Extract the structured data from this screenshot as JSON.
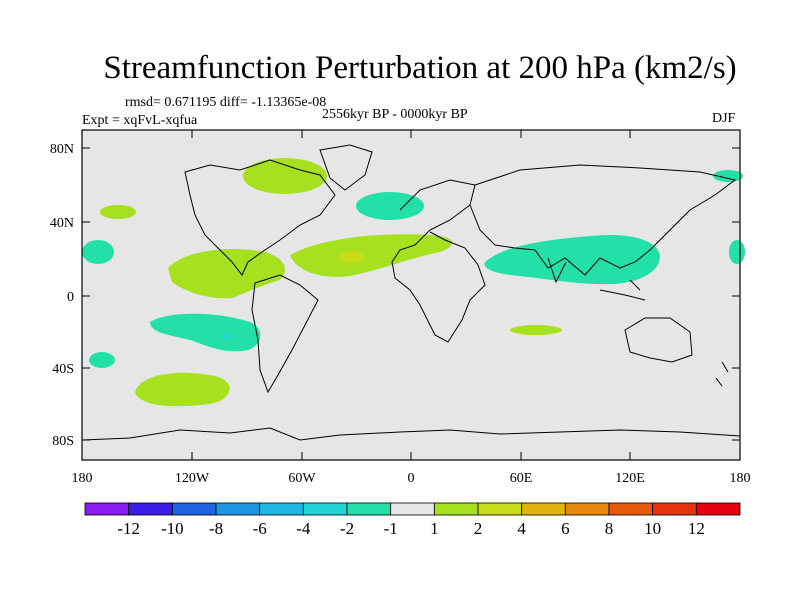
{
  "title": "Streamfunction Perturbation at 200 hPa (km2/s)",
  "stats_line": "rmsd= 0.671195 diff= -1.13365e-08",
  "period": "2556kyr BP - 0000kyr BP",
  "experiment": "Expt = xqFvL-xqfua",
  "season": "DJF",
  "lat_ticks": [
    "80N",
    "40N",
    "0",
    "40S",
    "80S"
  ],
  "lon_ticks": [
    "180",
    "120W",
    "60W",
    "0",
    "60E",
    "120E",
    "180"
  ],
  "colorbar": {
    "labels": [
      "-12",
      "-10",
      "-8",
      "-6",
      "-4",
      "-2",
      "-1",
      "1",
      "2",
      "4",
      "6",
      "8",
      "10",
      "12"
    ],
    "colors": [
      "#8a1cf0",
      "#3a1ee6",
      "#1f63e0",
      "#1f94e0",
      "#1fb6e2",
      "#20d4d8",
      "#22e0a8",
      "#e6e6e6",
      "#a6e01e",
      "#c8dc18",
      "#e2b20e",
      "#e6880e",
      "#e65a0e",
      "#e6340e",
      "#e6000e"
    ]
  }
}
